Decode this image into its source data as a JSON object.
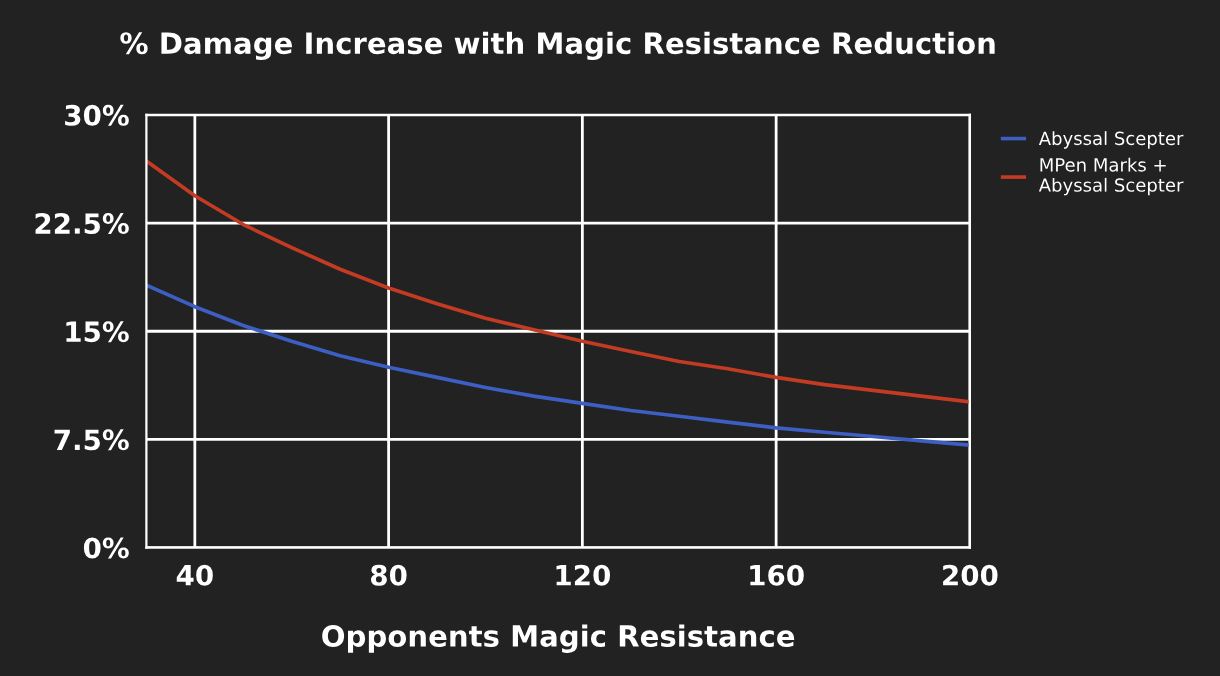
{
  "chart_data": {
    "type": "line",
    "title": "% Damage Increase with Magic Resistance Reduction",
    "xlabel": "Opponents Magic Resistance",
    "x": [
      30,
      40,
      50,
      60,
      70,
      80,
      90,
      100,
      110,
      120,
      130,
      140,
      150,
      160,
      170,
      180,
      190,
      200
    ],
    "series": [
      {
        "name": "Abyssal Scepter",
        "color": "#3d5fc4",
        "values": [
          18.2,
          16.7,
          15.4,
          14.3,
          13.3,
          12.5,
          11.8,
          11.1,
          10.5,
          10.0,
          9.5,
          9.1,
          8.7,
          8.3,
          8.0,
          7.7,
          7.4,
          7.1
        ]
      },
      {
        "name": "MPen Marks + Abyssal Scepter",
        "color": "#c23b22",
        "values": [
          26.8,
          24.4,
          22.4,
          20.8,
          19.3,
          18.0,
          16.9,
          15.9,
          15.1,
          14.3,
          13.6,
          12.9,
          12.4,
          11.8,
          11.3,
          10.9,
          10.5,
          10.1
        ]
      }
    ],
    "xlim": [
      30,
      200
    ],
    "xticks": [
      40,
      80,
      120,
      160,
      200
    ],
    "ylim": [
      0,
      30
    ],
    "yticks": [
      {
        "value": 0,
        "label": "0%"
      },
      {
        "value": 7.5,
        "label": "7.5%"
      },
      {
        "value": 15,
        "label": "15%"
      },
      {
        "value": 22.5,
        "label": "22.5%"
      },
      {
        "value": 30,
        "label": "30%"
      }
    ],
    "grid": true,
    "legend": "top right",
    "marker": "none",
    "line_style": "solid"
  }
}
